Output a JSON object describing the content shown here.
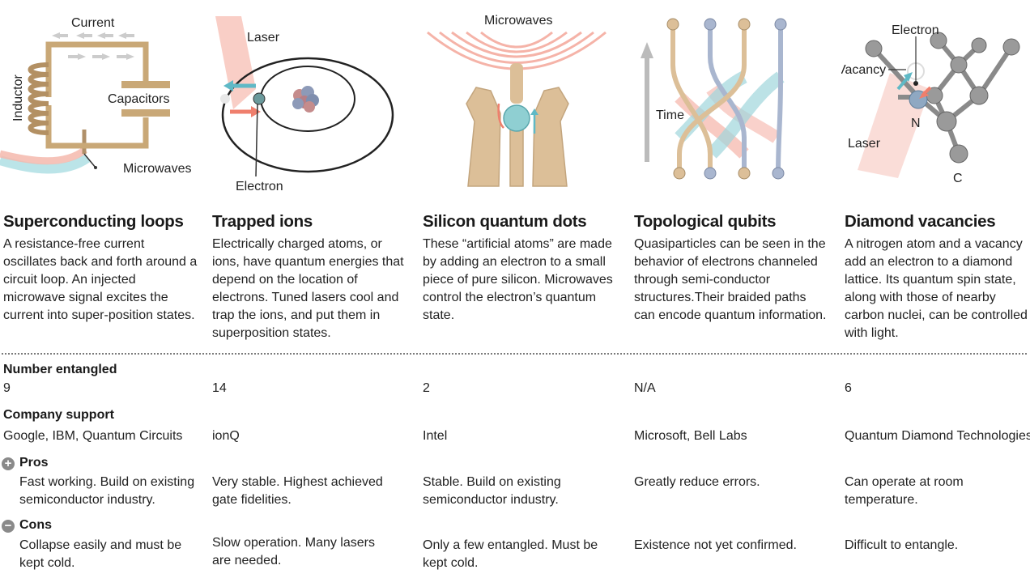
{
  "columns": [
    {
      "title": "Superconducting loops",
      "description": "A resistance-free current oscillates back and forth around a circuit loop. An injected microwave signal excites the current into super-position states.",
      "number_entangled": "9",
      "company_support": "Google, IBM, Quantum Circuits",
      "pros": "Fast working. Build on existing semiconductor industry.",
      "cons": "Collapse easily and must be kept cold.",
      "illustration_labels": {
        "current": "Current",
        "inductor": "Inductor",
        "capacitors": "Capacitors",
        "microwaves": "Microwaves"
      }
    },
    {
      "title": "Trapped ions",
      "description": "Electrically charged atoms, or ions, have quantum energies that depend on the location of electrons. Tuned lasers cool and trap the ions, and put them in superposition states.",
      "number_entangled": "14",
      "company_support": "ionQ",
      "pros": "Very stable. Highest achieved gate fidelities.",
      "cons": "Slow operation. Many lasers are needed.",
      "illustration_labels": {
        "laser": "Laser",
        "electron": "Electron"
      }
    },
    {
      "title": "Silicon quantum dots",
      "description": "These “artificial atoms” are made by adding an electron to a small piece of pure silicon. Microwaves control the electron’s quantum state.",
      "number_entangled": "2",
      "company_support": "Intel",
      "pros": "Stable. Build on existing semiconductor industry.",
      "cons": "Only a few entangled. Must be kept cold.",
      "illustration_labels": {
        "microwaves": "Microwaves"
      }
    },
    {
      "title": "Topological qubits",
      "description": "Quasiparticles can be seen in the behavior of electrons channeled through semi-conductor structures.Their braided paths can encode quantum information.",
      "number_entangled": "N/A",
      "company_support": "Microsoft, Bell Labs",
      "pros": "Greatly reduce errors.",
      "cons": "Existence not yet confirmed.",
      "illustration_labels": {
        "time": "Time"
      }
    },
    {
      "title": "Diamond vacancies",
      "description": "A nitrogen atom and a vacancy add an electron to a diamond lattice. Its quantum spin state, along with those of nearby carbon nuclei, can be controlled with light.",
      "number_entangled": "6",
      "company_support": "Quantum Diamond Technologies",
      "pros": "Can operate at room temperature.",
      "cons": "Difficult to entangle.",
      "illustration_labels": {
        "electron": "Electron",
        "vacancy": "Vacancy",
        "nitrogen": "N",
        "laser": "Laser",
        "carbon": "C"
      }
    }
  ],
  "row_labels": {
    "number_entangled": "Number entangled",
    "company_support": "Company support",
    "pros": "Pros",
    "cons": "Cons"
  },
  "colors": {
    "red": "#ef8a7c",
    "blue": "#7cc6cf",
    "tan": "#c9a877",
    "gray": "#8c8c8c"
  }
}
